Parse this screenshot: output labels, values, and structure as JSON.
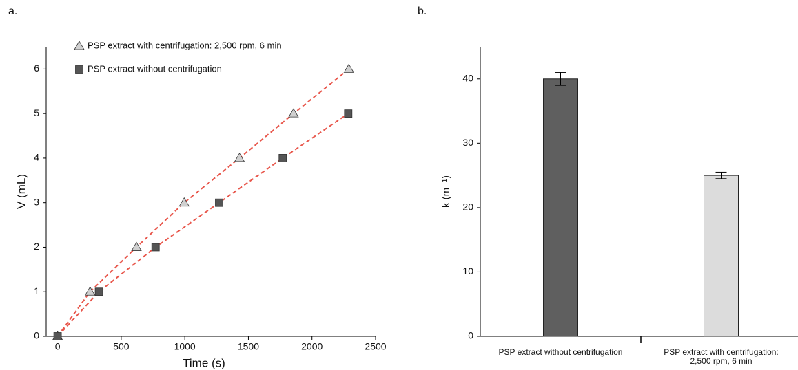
{
  "chart_data": [
    {
      "type": "scatter",
      "label": "a.",
      "x_label": "Time (s)",
      "y_label": "V (mL)",
      "series": [
        {
          "name": "PSP extract with centrifugation: 2,500 rpm, 6 min",
          "color": "#d0d0d0",
          "marker": "triangle",
          "line_color": "#e8564b",
          "x": [
            0,
            255,
            620,
            995,
            1430,
            1855,
            2290
          ],
          "values": [
            0,
            1,
            2,
            3,
            4,
            5,
            6
          ]
        },
        {
          "name": "PSP extract without centrifugation",
          "color": "#555555",
          "marker": "square",
          "line_color": "#e8564b",
          "x": [
            0,
            325,
            770,
            1270,
            1770,
            2285
          ],
          "values": [
            0,
            1,
            2,
            3,
            4,
            5
          ]
        }
      ],
      "line_style": "dashed",
      "legend": "upper left",
      "xlim": [
        -90,
        2500
      ],
      "ylim": [
        0,
        6.5
      ],
      "xticks": [
        0,
        500,
        1000,
        1500,
        2000,
        2500
      ],
      "yticks": [
        0,
        1,
        2,
        3,
        4,
        5,
        6
      ]
    },
    {
      "type": "bar",
      "label": "b.",
      "y_label": "k (m⁻¹)",
      "categories": [
        "PSP extract without centrifugation",
        "PSP extract with centrifugation: 2,500 rpm, 6 min"
      ],
      "values": [
        40,
        25
      ],
      "errors": [
        1,
        0.5
      ],
      "colors": [
        "#5f5f5f",
        "#dcdcdc"
      ],
      "ylim": [
        0,
        45
      ],
      "yticks": [
        0,
        10,
        20,
        30,
        40
      ]
    }
  ]
}
